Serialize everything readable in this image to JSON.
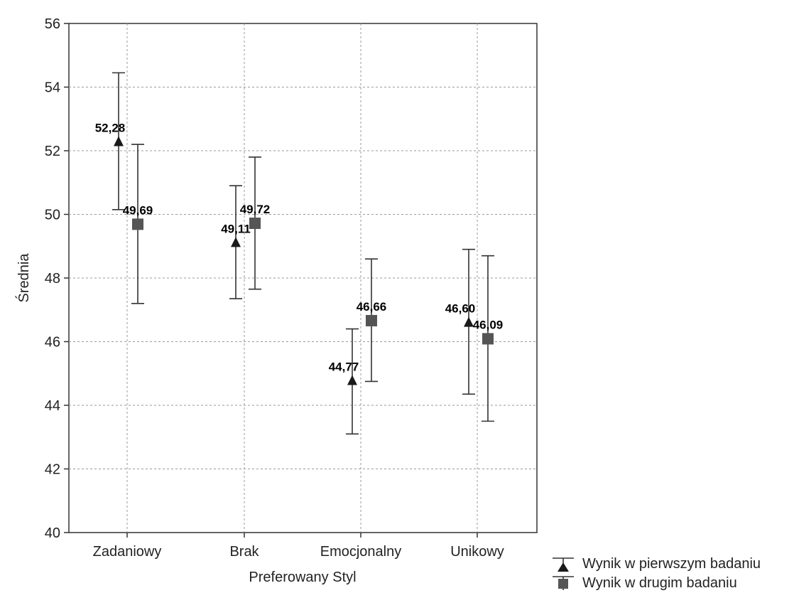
{
  "chart_data": {
    "type": "scatter",
    "xlabel": "Preferowany Styl",
    "ylabel": "Średnia",
    "ylim": [
      40,
      56
    ],
    "yticks": [
      40,
      42,
      44,
      46,
      48,
      50,
      52,
      54,
      56
    ],
    "categories": [
      "Zadaniowy",
      "Brak",
      "Emocjonalny",
      "Unikowy"
    ],
    "grid": true,
    "legend_position": "bottom-right",
    "series": [
      {
        "name": "Wynik w pierwszym badaniu",
        "marker": "triangle",
        "color": "#1a1a1a",
        "values": [
          52.28,
          49.11,
          44.77,
          46.6
        ],
        "labels": [
          "52,28",
          "49,11",
          "44,77",
          "46,60"
        ],
        "error_low": [
          50.15,
          47.35,
          43.1,
          44.35
        ],
        "error_high": [
          54.45,
          50.9,
          46.4,
          48.9
        ]
      },
      {
        "name": "Wynik w drugim badaniu",
        "marker": "square",
        "color": "#555555",
        "values": [
          49.69,
          49.72,
          46.66,
          46.09
        ],
        "labels": [
          "49,69",
          "49,72",
          "46,66",
          "46,09"
        ],
        "error_low": [
          47.2,
          47.65,
          44.75,
          43.5
        ],
        "error_high": [
          52.2,
          51.8,
          48.6,
          48.7
        ]
      }
    ]
  }
}
